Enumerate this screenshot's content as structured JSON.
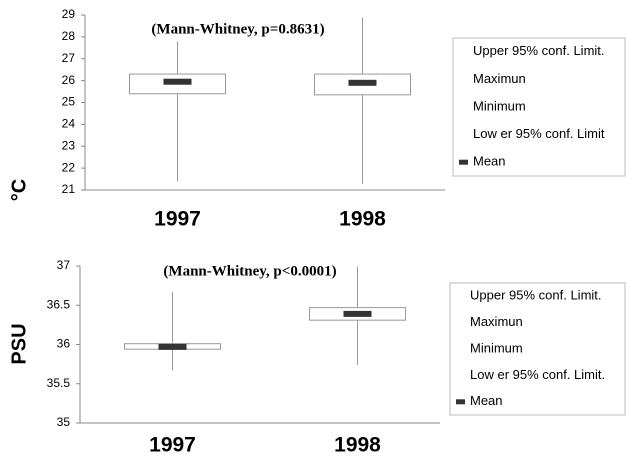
{
  "chart_data": [
    {
      "type": "box",
      "title": "(Mann-Whitney, p=0.8631)",
      "y_label": "°C",
      "categories": [
        "1997",
        "1998"
      ],
      "series": [
        {
          "name": "Upper 95% conf. Limit.",
          "values": [
            26.3,
            26.3
          ]
        },
        {
          "name": "Maximun",
          "values": [
            27.8,
            28.9
          ]
        },
        {
          "name": "Minimum",
          "values": [
            21.4,
            21.3
          ]
        },
        {
          "name": "Low er 95% conf. Limit",
          "values": [
            25.4,
            25.35
          ]
        },
        {
          "name": "Mean",
          "color": "#333333",
          "values": [
            25.95,
            25.9
          ]
        }
      ],
      "ylim": [
        21,
        29
      ],
      "yticks": [
        21,
        22,
        23,
        24,
        25,
        26,
        27,
        28,
        29
      ]
    },
    {
      "type": "box",
      "title": "(Mann-Whitney, p<0.0001)",
      "y_label": "PSU",
      "categories": [
        "1997",
        "1998"
      ],
      "series": [
        {
          "name": "Upper 95% conf. Limit.",
          "values": [
            36.01,
            36.47
          ]
        },
        {
          "name": "Maximun",
          "values": [
            36.67,
            36.99
          ]
        },
        {
          "name": "Minimum",
          "values": [
            35.67,
            35.74
          ]
        },
        {
          "name": "Low er 95% conf. Limit.",
          "values": [
            35.94,
            36.31
          ]
        },
        {
          "name": "Mean",
          "color": "#333333",
          "values": [
            35.97,
            36.39
          ]
        }
      ],
      "ylim": [
        35,
        37
      ],
      "yticks": [
        35,
        35.5,
        36,
        36.5,
        37
      ]
    }
  ]
}
